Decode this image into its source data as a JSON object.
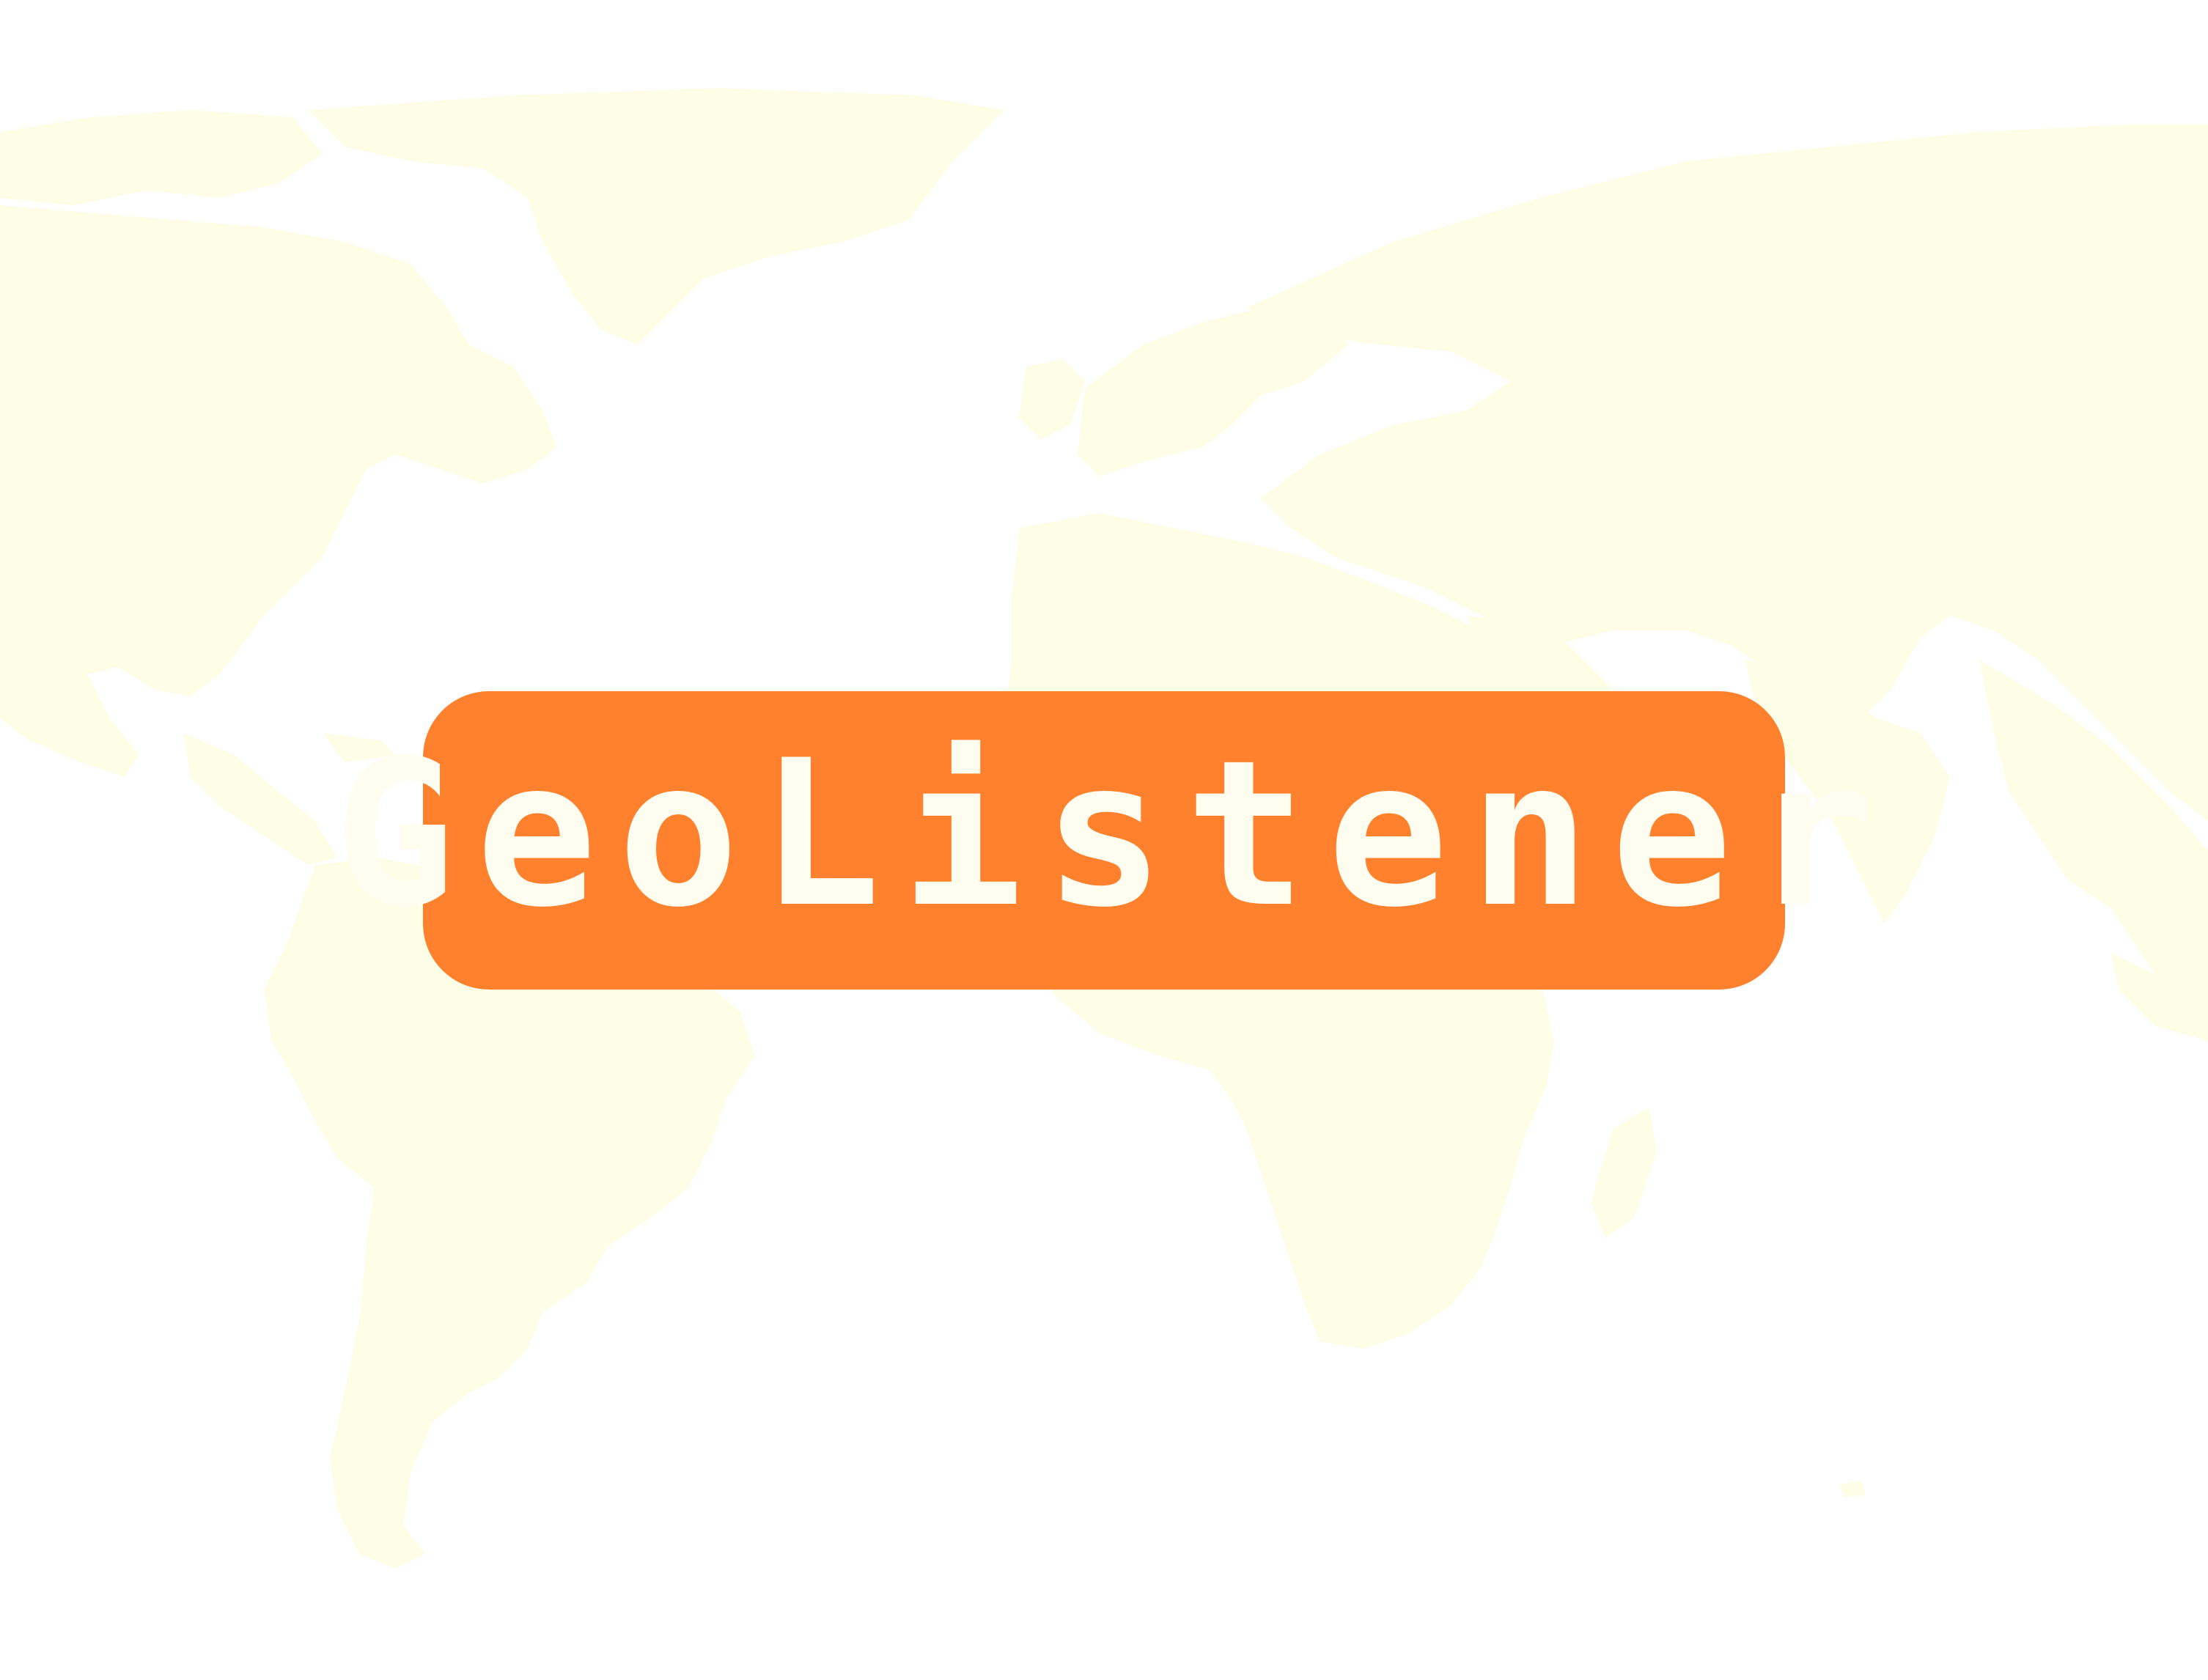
{
  "logo": {
    "text": "GeoListener"
  },
  "colors": {
    "background": "#ffffff",
    "land": "#fefee6",
    "badge": "#ff812d",
    "logo_text": "#fffdf0"
  },
  "icons": {
    "background_map": "world-map-icon"
  }
}
